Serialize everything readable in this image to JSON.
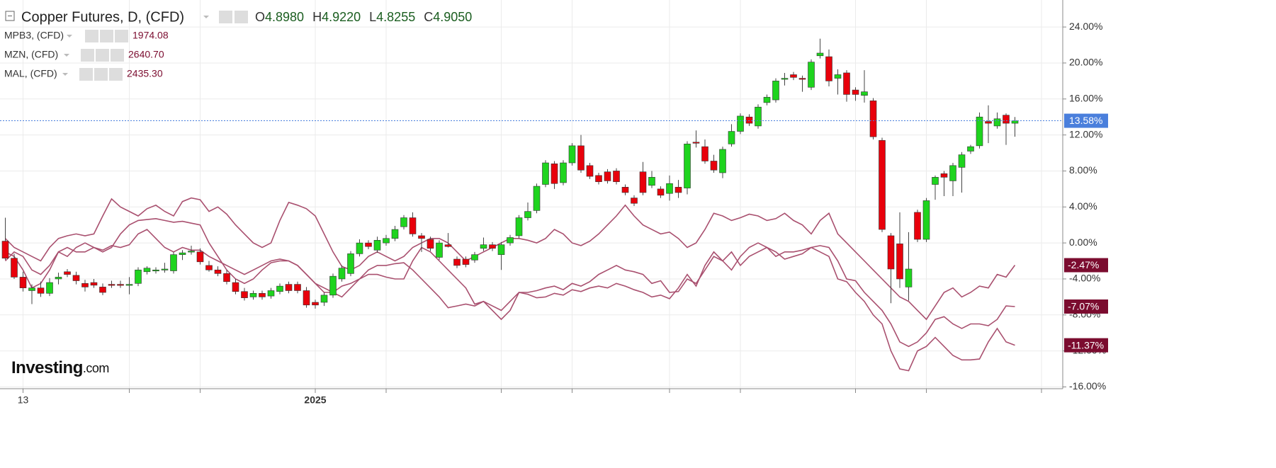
{
  "chart_data": {
    "type": "candlestick",
    "header": {
      "title": "Copper Futures, D, (CFD)",
      "quote": [
        {
          "label": "O",
          "value": "4.8980"
        },
        {
          "label": "H",
          "value": "4.9220"
        },
        {
          "label": "L",
          "value": "4.8255"
        },
        {
          "label": "C",
          "value": "4.9050"
        }
      ]
    },
    "logo": "Investing",
    "logo_suffix": ".com",
    "categories": [
      null,
      null,
      "13",
      null,
      null,
      null,
      null,
      null,
      null,
      null,
      null,
      null,
      null,
      null,
      null,
      null,
      null,
      null,
      null,
      null,
      null,
      null,
      null,
      null,
      null,
      null,
      null,
      null,
      null,
      null,
      null,
      null,
      null,
      null,
      null,
      "2025",
      null,
      null,
      null,
      null,
      null,
      null,
      null,
      null,
      null,
      null,
      null,
      null,
      null,
      null,
      null,
      null,
      null,
      null,
      null,
      null,
      null,
      null,
      null,
      null,
      null,
      null,
      null,
      null,
      null,
      null,
      null,
      null,
      null,
      null,
      null,
      null,
      null,
      null,
      null,
      null,
      null,
      null,
      null,
      null,
      null,
      null,
      null,
      null,
      null,
      null,
      null,
      null,
      null,
      null,
      null,
      null,
      null,
      null,
      null,
      null,
      null,
      null,
      null,
      null,
      null,
      null,
      null,
      null,
      null,
      null,
      null,
      null,
      null,
      null,
      null,
      null,
      null,
      null,
      null
    ],
    "xlim": [
      -0.6,
      119.4
    ],
    "xticks": [
      2,
      14,
      22,
      35,
      43,
      56,
      64,
      75,
      83,
      96,
      104,
      117
    ],
    "ylim": [
      -16.2,
      27
    ],
    "yticks": [
      {
        "value": 24,
        "label": "24.00%"
      },
      {
        "value": 20,
        "label": "20.00%"
      },
      {
        "value": 16,
        "label": "16.00%"
      },
      {
        "value": 12,
        "label": "12.00%"
      },
      {
        "value": 8,
        "label": "8.00%"
      },
      {
        "value": 4,
        "label": "4.00%"
      },
      {
        "value": 0,
        "label": "0.00%"
      },
      {
        "value": -4,
        "label": "-4.00%"
      },
      {
        "value": -8,
        "label": "-8.00%"
      },
      {
        "value": -12,
        "label": "-12.00%"
      },
      {
        "value": -16,
        "label": "-16.00%"
      }
    ],
    "grid": true,
    "up_color": "#1ed41e",
    "down_color": "#e8000b",
    "last_label": "13.58%",
    "last_color": "#4a7fdc",
    "ohlc": [
      [
        0.2,
        2.8,
        -1.9,
        -1.7
      ],
      [
        -1.7,
        -1.2,
        -4.0,
        -3.8
      ],
      [
        -3.8,
        -3.2,
        -5.4,
        -5.0
      ],
      [
        -5.3,
        -4.6,
        -6.8,
        -5.0
      ],
      [
        -5.0,
        -4.3,
        -6.0,
        -5.6
      ],
      [
        -5.6,
        -3.9,
        -5.9,
        -4.4
      ],
      [
        -4.0,
        -3.3,
        -4.6,
        -3.8
      ],
      [
        -3.2,
        -2.9,
        -3.8,
        -3.5
      ],
      [
        -3.6,
        -3.2,
        -4.6,
        -4.2
      ],
      [
        -4.5,
        -4.1,
        -5.4,
        -4.9
      ],
      [
        -4.4,
        -4.0,
        -5.0,
        -4.7
      ],
      [
        -4.9,
        -4.5,
        -5.8,
        -5.5
      ],
      [
        -4.6,
        -4.2,
        -5.0,
        -4.7
      ],
      [
        -4.6,
        -4.2,
        -5.0,
        -4.7
      ],
      [
        -4.7,
        -3.8,
        -5.7,
        -4.6
      ],
      [
        -4.5,
        -2.7,
        -4.8,
        -3.0
      ],
      [
        -3.2,
        -2.6,
        -3.5,
        -2.8
      ],
      [
        -3.1,
        -2.7,
        -3.4,
        -3.0
      ],
      [
        -3.0,
        -2.2,
        -3.3,
        -2.9
      ],
      [
        -3.1,
        -1.0,
        -3.4,
        -1.3
      ],
      [
        -1.3,
        -0.8,
        -1.9,
        -1.1
      ],
      [
        -1.0,
        -0.3,
        -1.3,
        -0.9
      ],
      [
        -1.0,
        -0.6,
        -2.4,
        -2.1
      ],
      [
        -2.5,
        -2.0,
        -3.2,
        -3.0
      ],
      [
        -3.0,
        -2.6,
        -3.7,
        -3.4
      ],
      [
        -3.4,
        -3.0,
        -4.6,
        -4.3
      ],
      [
        -4.4,
        -4.0,
        -5.7,
        -5.4
      ],
      [
        -5.4,
        -5.0,
        -6.4,
        -6.1
      ],
      [
        -6.0,
        -5.3,
        -6.3,
        -5.6
      ],
      [
        -5.6,
        -5.3,
        -6.3,
        -6.0
      ],
      [
        -5.9,
        -5.0,
        -6.2,
        -5.3
      ],
      [
        -5.4,
        -4.5,
        -5.7,
        -4.8
      ],
      [
        -4.6,
        -4.3,
        -5.6,
        -5.3
      ],
      [
        -4.6,
        -4.3,
        -5.6,
        -5.3
      ],
      [
        -5.3,
        -4.9,
        -7.2,
        -6.9
      ],
      [
        -6.6,
        -6.3,
        -7.3,
        -6.9
      ],
      [
        -6.6,
        -5.5,
        -7.0,
        -5.8
      ],
      [
        -5.8,
        -3.4,
        -6.1,
        -3.7
      ],
      [
        -4.0,
        -2.5,
        -4.3,
        -2.8
      ],
      [
        -3.4,
        -0.9,
        -3.7,
        -1.2
      ],
      [
        -1.2,
        0.4,
        -1.5,
        0
      ],
      [
        0,
        0.3,
        -0.7,
        -0.4
      ],
      [
        -0.8,
        0.7,
        -1.1,
        0.3
      ],
      [
        0,
        0.9,
        -0.3,
        0.5
      ],
      [
        0.5,
        1.9,
        0.2,
        1.5
      ],
      [
        1.8,
        3.1,
        1.5,
        2.8
      ],
      [
        2.8,
        3.4,
        0.7,
        1.0
      ],
      [
        0.8,
        1.1,
        -1.0,
        0.5
      ],
      [
        0.4,
        0.7,
        -0.9,
        -0.6
      ],
      [
        -1.6,
        0.3,
        -1.9,
        0
      ],
      [
        -0.2,
        1.1,
        -0.5,
        -0.4
      ],
      [
        -1.8,
        -1.5,
        -2.8,
        -2.5
      ],
      [
        -1.8,
        -1.5,
        -2.7,
        -2.4
      ],
      [
        -1.9,
        -1.0,
        -2.2,
        -1.3
      ],
      [
        -0.6,
        0.6,
        -0.9,
        -0.2
      ],
      [
        -0.2,
        0.1,
        -0.9,
        -0.6
      ],
      [
        -1.3,
        0.1,
        -3.0,
        -0.2
      ],
      [
        0,
        0.9,
        -0.3,
        0.6
      ],
      [
        0.8,
        3.1,
        0.5,
        2.8
      ],
      [
        2.8,
        4.5,
        2.5,
        3.5
      ],
      [
        3.6,
        6.6,
        3.3,
        6.3
      ],
      [
        6.5,
        9.2,
        6.2,
        8.9
      ],
      [
        8.8,
        9.1,
        6.0,
        6.6
      ],
      [
        6.7,
        9.2,
        6.4,
        8.9
      ],
      [
        8.9,
        11.1,
        8.6,
        10.8
      ],
      [
        10.8,
        12.0,
        7.8,
        8.1
      ],
      [
        8.6,
        8.9,
        7.1,
        7.4
      ],
      [
        7.5,
        7.8,
        6.5,
        6.8
      ],
      [
        7.9,
        8.2,
        6.6,
        6.9
      ],
      [
        8.0,
        8.3,
        6.5,
        6.8
      ],
      [
        6.2,
        6.5,
        5.3,
        5.6
      ],
      [
        5.0,
        5.3,
        4.1,
        4.4
      ],
      [
        7.9,
        9.0,
        5.3,
        5.6
      ],
      [
        6.4,
        8.0,
        6.1,
        7.3
      ],
      [
        6.0,
        6.3,
        5.0,
        5.3
      ],
      [
        5.5,
        7.5,
        4.7,
        6.6
      ],
      [
        6.2,
        7.0,
        5.0,
        5.6
      ],
      [
        6.1,
        11.3,
        5.4,
        11.0
      ],
      [
        11.2,
        12.5,
        10.6,
        11.1
      ],
      [
        10.7,
        11.5,
        8.8,
        9.1
      ],
      [
        9.1,
        9.8,
        7.8,
        8.1
      ],
      [
        7.8,
        10.7,
        7.2,
        10.4
      ],
      [
        11.0,
        13.2,
        10.7,
        12.4
      ],
      [
        12.4,
        14.4,
        12.1,
        14.1
      ],
      [
        14.0,
        14.3,
        13.0,
        13.3
      ],
      [
        13.0,
        15.4,
        12.7,
        15.1
      ],
      [
        15.6,
        16.5,
        15.3,
        16.2
      ],
      [
        15.9,
        18.3,
        15.6,
        18.0
      ],
      [
        18.2,
        18.9,
        17.5,
        18.3
      ],
      [
        18.7,
        19.0,
        18.1,
        18.4
      ],
      [
        18.3,
        18.6,
        16.8,
        18.2
      ],
      [
        17.3,
        20.4,
        17.0,
        20.1
      ],
      [
        20.8,
        22.7,
        20.5,
        21.1
      ],
      [
        20.7,
        21.5,
        17.4,
        18.0
      ],
      [
        18.3,
        19.3,
        16.5,
        18.7
      ],
      [
        18.9,
        19.2,
        15.7,
        16.5
      ],
      [
        17.0,
        17.3,
        15.8,
        16.5
      ],
      [
        16.4,
        19.2,
        15.6,
        16.8
      ],
      [
        15.8,
        16.1,
        11.5,
        11.8
      ],
      [
        11.4,
        11.7,
        1.2,
        1.5
      ],
      [
        0.8,
        1.1,
        -6.7,
        -2.9
      ],
      [
        -0.1,
        3.4,
        -5.0,
        -4.0
      ],
      [
        -4.9,
        1.2,
        -6.4,
        -2.9
      ],
      [
        3.4,
        3.7,
        0.1,
        0.4
      ],
      [
        0.4,
        5.0,
        0.1,
        4.7
      ],
      [
        6.5,
        7.5,
        4.8,
        7.3
      ],
      [
        7.7,
        8.0,
        5.2,
        7.3
      ],
      [
        6.9,
        8.9,
        5.2,
        8.6
      ],
      [
        8.4,
        10.1,
        5.6,
        9.8
      ],
      [
        10.2,
        10.9,
        9.9,
        10.7
      ],
      [
        10.8,
        14.5,
        10.5,
        14.0
      ],
      [
        13.5,
        15.3,
        11.1,
        13.3
      ],
      [
        13.0,
        14.5,
        12.7,
        13.8
      ],
      [
        14.2,
        14.4,
        10.9,
        13.3
      ],
      [
        13.3,
        14.0,
        11.8,
        13.58
      ]
    ],
    "series": [
      {
        "name": "MPB3, (CFD)",
        "last_price": "1974.08",
        "color": "#a9506f",
        "end_label": "-2.47%",
        "label_color": "#7b0c2f",
        "values": [
          0.5,
          -0.5,
          -1,
          -1.5,
          -2,
          -0.5,
          0.5,
          0.8,
          1,
          0.8,
          1,
          3,
          4.9,
          4,
          3.5,
          3,
          3.8,
          4.2,
          3.5,
          3,
          4.6,
          5,
          4.8,
          3.5,
          4,
          3.2,
          2,
          1,
          0,
          -0.5,
          0,
          2.5,
          4.5,
          4.2,
          3.8,
          3,
          1,
          -1,
          -2.6,
          -3,
          -2.5,
          -1.5,
          -1,
          -1.5,
          -2,
          -1.5,
          -0.5,
          0,
          0.5,
          0.5,
          0,
          -1,
          -2,
          -1.5,
          -1,
          -0.5,
          0,
          0.5,
          0.5,
          0.3,
          0,
          0.5,
          1.5,
          1,
          0,
          -0.3,
          0.2,
          1,
          2,
          3,
          4.2,
          3,
          2,
          1.5,
          1,
          1.2,
          0.5,
          -0.5,
          0,
          1.5,
          3.3,
          3,
          2.5,
          2.8,
          3.2,
          3,
          2.5,
          2.7,
          3.3,
          2.5,
          2,
          1,
          2.5,
          3.3,
          1,
          0,
          -1,
          -2,
          -3,
          -4,
          -5,
          -6,
          -6.5,
          -7.5,
          -8.5,
          -7,
          -5.5,
          -5,
          -6,
          -5.5,
          -4.8,
          -5,
          -3.5,
          -3.8,
          -2.47
        ]
      },
      {
        "name": "MZN, (CFD)",
        "last_price": "2640.70",
        "color": "#a9506f",
        "end_label": "-7.07%",
        "label_color": "#7b0c2f",
        "values": [
          -2,
          -1,
          -1.5,
          -3,
          -3.5,
          -2.5,
          -1,
          -0.5,
          -1,
          -1,
          -0.5,
          -1,
          -0.5,
          1,
          2,
          2.5,
          2.6,
          2.7,
          2.5,
          2.3,
          2.4,
          2.2,
          2,
          0,
          -1.5,
          -3,
          -4,
          -4.5,
          -4,
          -3,
          -2.2,
          -2,
          -2,
          -2.5,
          -3.5,
          -4.5,
          -5.5,
          -5.5,
          -4.8,
          -4.5,
          -4,
          -3.5,
          -3.5,
          -3.8,
          -4,
          -4,
          -2,
          -0.5,
          -1,
          -2,
          -3,
          -4,
          -5,
          -6.8,
          -6.5,
          -7,
          -7.5,
          -6.5,
          -5.5,
          -5.5,
          -5.3,
          -5,
          -4.8,
          -5.2,
          -4.5,
          -4.8,
          -4.3,
          -3.5,
          -3,
          -2.5,
          -3,
          -3.2,
          -3.5,
          -4.5,
          -4.2,
          -5.5,
          -5.4,
          -4,
          -4.5,
          -3,
          -1.5,
          -2,
          -1,
          -2.5,
          -1.5,
          -1,
          -0.5,
          -1.5,
          -1,
          -1,
          -0.8,
          -0.5,
          -0.3,
          -0.5,
          -2,
          -4,
          -4.2,
          -5.5,
          -6.5,
          -7.5,
          -9,
          -11,
          -11.5,
          -11,
          -10,
          -8.5,
          -8.2,
          -9,
          -9.5,
          -9,
          -9,
          -9.2,
          -8.5,
          -7,
          -7.07
        ]
      },
      {
        "name": "MAL, (CFD)",
        "last_price": "2435.30",
        "color": "#a9506f",
        "end_label": "-11.37%",
        "label_color": "#7b0c2f",
        "values": [
          -1,
          -1.5,
          -3,
          -5,
          -4.5,
          -3,
          -1,
          -1.5,
          -0.5,
          0,
          -0.5,
          -0.8,
          -0.3,
          -0.5,
          -0.2,
          1,
          1.5,
          0.5,
          -0.5,
          -1,
          -0.5,
          -0.8,
          -0.8,
          -1.5,
          -2,
          -2.5,
          -3,
          -3.5,
          -3,
          -2.5,
          -2,
          -1.8,
          -2,
          -2.5,
          -3.5,
          -4.5,
          -5,
          -5.5,
          -6,
          -5,
          -4,
          -3,
          -2.5,
          -2.5,
          -2.3,
          -2.2,
          -3,
          -4,
          -5,
          -6,
          -7.2,
          -7,
          -6.8,
          -7,
          -6.5,
          -7.5,
          -8.5,
          -7.5,
          -5.5,
          -5.7,
          -6.1,
          -6,
          -5.6,
          -5.8,
          -5.2,
          -5.4,
          -5,
          -4.8,
          -5,
          -4.5,
          -4.8,
          -5.2,
          -5.5,
          -6,
          -5.8,
          -6.2,
          -5,
          -3.5,
          -4.8,
          -2.5,
          -1,
          -2,
          -3,
          -1.5,
          -0.5,
          0,
          -0.5,
          -1,
          -1.8,
          -1.5,
          -1.2,
          -0.5,
          -1,
          -1.5,
          -4,
          -4.3,
          -5.5,
          -6.5,
          -8,
          -9,
          -12,
          -14,
          -14.2,
          -12,
          -11.5,
          -10.5,
          -11.5,
          -12.5,
          -13,
          -13,
          -12.9,
          -11,
          -9.5,
          -11,
          -11.37
        ]
      }
    ]
  }
}
